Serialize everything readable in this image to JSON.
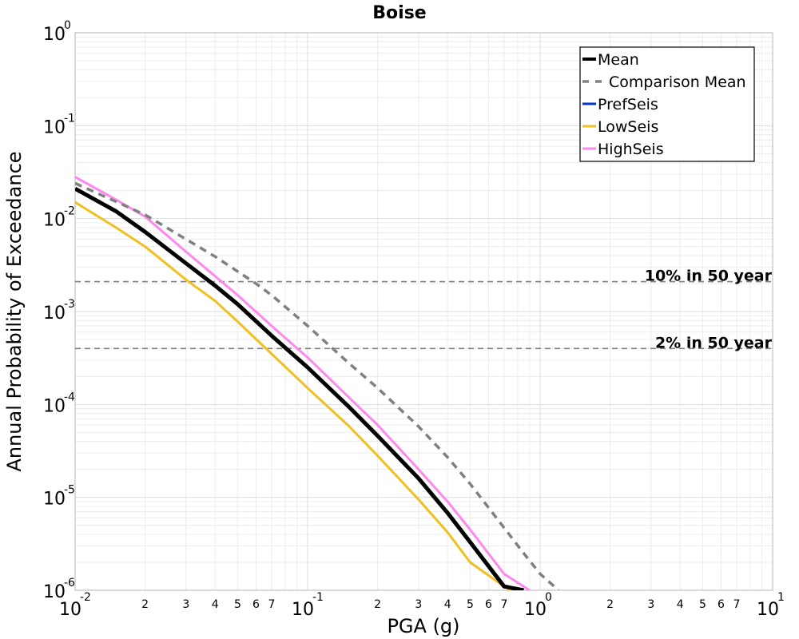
{
  "chart_data": {
    "type": "line",
    "title": "Boise",
    "xlabel": "PGA (g)",
    "ylabel": "Annual Probability of Exceedance",
    "x_scale": "log",
    "y_scale": "log",
    "xlim": [
      0.01,
      10
    ],
    "ylim": [
      1e-06,
      1
    ],
    "grid": true,
    "legend_position": "top-right",
    "x_major_ticks": [
      {
        "base": "10",
        "exp": "-2"
      },
      {
        "base": "10",
        "exp": "-1"
      },
      {
        "base": "10",
        "exp": "0"
      },
      {
        "base": "10",
        "exp": "1"
      }
    ],
    "y_major_ticks": [
      {
        "base": "10",
        "exp": "0"
      },
      {
        "base": "10",
        "exp": "-1"
      },
      {
        "base": "10",
        "exp": "-2"
      },
      {
        "base": "10",
        "exp": "-3"
      },
      {
        "base": "10",
        "exp": "-4"
      },
      {
        "base": "10",
        "exp": "-5"
      },
      {
        "base": "10",
        "exp": "-6"
      }
    ],
    "x_minor_tick_labels": [
      "2",
      "3",
      "4",
      "5",
      "6",
      "7"
    ],
    "reference_lines": [
      {
        "label": "10% in 50 year",
        "y": 0.0021
      },
      {
        "label": "2% in 50 year",
        "y": 0.0004
      }
    ],
    "series": [
      {
        "name": "Mean",
        "color": "#000000",
        "style": "solid-thick",
        "x": [
          0.01,
          0.015,
          0.02,
          0.03,
          0.04,
          0.05,
          0.07,
          0.1,
          0.15,
          0.2,
          0.3,
          0.4,
          0.5,
          0.7,
          0.85
        ],
        "y": [
          0.021,
          0.012,
          0.0072,
          0.0033,
          0.0019,
          0.0012,
          0.00055,
          0.00025,
          9.5e-05,
          4.6e-05,
          1.6e-05,
          6.8e-06,
          3.3e-06,
          1.1e-06,
          1e-06
        ]
      },
      {
        "name": "Comparison Mean",
        "color": "#808080",
        "style": "dashed",
        "x": [
          0.01,
          0.02,
          0.03,
          0.04,
          0.05,
          0.06,
          0.07,
          0.1,
          0.15,
          0.2,
          0.3,
          0.4,
          0.5,
          0.7,
          0.85,
          1.0,
          1.2
        ],
        "y": [
          0.024,
          0.011,
          0.006,
          0.0039,
          0.0027,
          0.002,
          0.0015,
          0.0007,
          0.00028,
          0.00015,
          5.8e-05,
          2.7e-05,
          1.4e-05,
          4.7e-06,
          2.5e-06,
          1.5e-06,
          1e-06
        ]
      },
      {
        "name": "PrefSeis",
        "color": "#0033cc",
        "style": "solid",
        "x": [],
        "y": []
      },
      {
        "name": "LowSeis",
        "color": "#f0c020",
        "style": "solid",
        "x": [
          0.01,
          0.015,
          0.02,
          0.03,
          0.04,
          0.05,
          0.07,
          0.1,
          0.15,
          0.2,
          0.3,
          0.4,
          0.5,
          0.7,
          0.75
        ],
        "y": [
          0.015,
          0.008,
          0.005,
          0.0022,
          0.0013,
          0.00078,
          0.00035,
          0.00015,
          5.9e-05,
          2.8e-05,
          9.5e-06,
          4.2e-06,
          2e-06,
          1.1e-06,
          1e-06
        ]
      },
      {
        "name": "HighSeis",
        "color": "#ff88ee",
        "style": "solid",
        "x": [
          0.01,
          0.015,
          0.02,
          0.03,
          0.04,
          0.05,
          0.07,
          0.1,
          0.15,
          0.2,
          0.3,
          0.4,
          0.5,
          0.7,
          0.9
        ],
        "y": [
          0.028,
          0.016,
          0.0105,
          0.0044,
          0.0024,
          0.0015,
          0.0007,
          0.00032,
          0.00012,
          6e-05,
          2e-05,
          9e-06,
          4.5e-06,
          1.5e-06,
          1e-06
        ]
      }
    ]
  }
}
